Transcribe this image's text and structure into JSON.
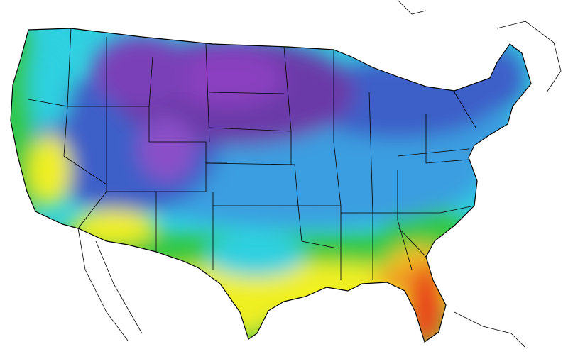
{
  "map": {
    "palette": {
      "coldest": "#8a3fc0",
      "cold_pink": "#c87ad8",
      "purple": "#6a3aa8",
      "blue": "#3c5fc8",
      "light_blue": "#3a9ee0",
      "cyan": "#2fd0e0",
      "green": "#30c840",
      "yellow": "#f0f020",
      "orange": "#f08020",
      "red": "#e84a1a",
      "background": "#ffffff",
      "border_lines": "#000000"
    }
  }
}
